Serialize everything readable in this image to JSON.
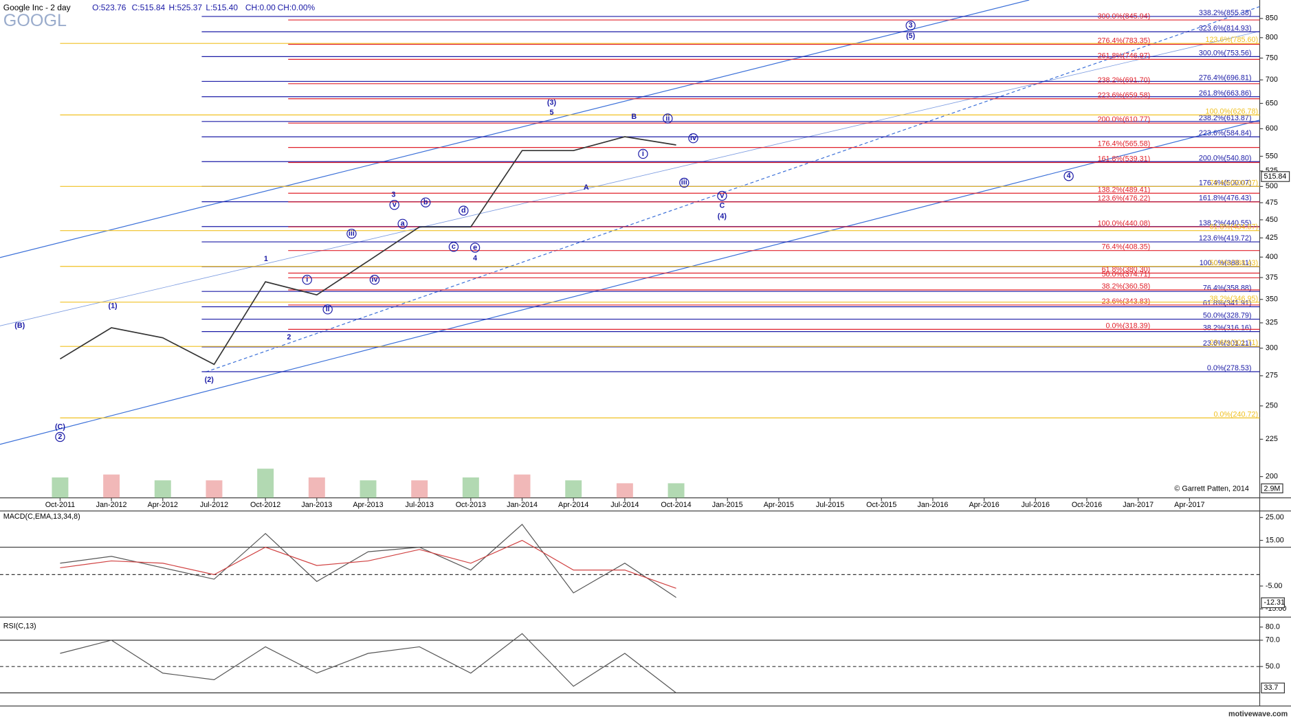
{
  "header": {
    "title": "Google Inc - 2 day",
    "open": "O:523.76",
    "close": "C:515.84",
    "high": "H:525.37",
    "low": "L:515.40",
    "change": "CH:0.00",
    "change_pct": "CH:0.00%",
    "symbol": "GOOGL"
  },
  "footer": "motivewave.com",
  "chart_data": [
    {
      "type": "line",
      "categories": [
        "Oct-2011",
        "Jan-2012",
        "Apr-2012",
        "Jul-2012",
        "Oct-2012",
        "Jan-2013",
        "Apr-2013",
        "Jul-2013",
        "Oct-2013",
        "Jan-2014",
        "Apr-2014",
        "Jul-2014",
        "Oct-2014",
        "Jan-2015",
        "Apr-2015",
        "Jul-2015",
        "Oct-2015",
        "Jan-2016",
        "Apr-2016",
        "Jul-2016",
        "Oct-2016",
        "Jan-2017",
        "Apr-2017"
      ],
      "series": [
        {
          "color": "#333333",
          "values": [
            290,
            320,
            310,
            285,
            370,
            355,
            395,
            440,
            440,
            560,
            560,
            585,
            570,
            null,
            null,
            null,
            null,
            null,
            null,
            null,
            null,
            null,
            null
          ]
        }
      ],
      "log_scale": true,
      "ylim": [
        187,
        901
      ],
      "yticks": [
        850,
        800,
        750,
        700,
        650,
        600,
        550,
        525,
        500,
        475,
        450,
        425,
        400,
        375,
        350,
        325,
        300,
        275,
        250,
        225,
        200
      ],
      "last_price": 515.84,
      "volume": {
        "values": [
          3.5,
          4,
          3,
          3,
          5,
          3.5,
          3,
          3,
          3.5,
          4,
          3,
          2.5,
          2.5,
          null,
          null,
          null,
          null,
          null,
          null,
          null,
          null,
          null,
          null
        ],
        "ylim": [
          0,
          12
        ],
        "last": {
          "value": 2.9,
          "label": "2.9M"
        }
      },
      "fib_levels": [
        {
          "color": "#1a1aa6",
          "lines": [
            {
              "value": 855.38,
              "label": "338.2%(855.38)"
            },
            {
              "value": 814.93,
              "label": "323.6%(814.93)"
            },
            {
              "value": 753.56,
              "label": "300.0%(753.56)"
            },
            {
              "value": 696.81,
              "label": "276.4%(696.81)"
            },
            {
              "value": 663.86,
              "label": "261.8%(663.86)"
            },
            {
              "value": 613.87,
              "label": "238.2%(613.87)"
            },
            {
              "value": 584.84,
              "label": "223.6%(584.84)"
            },
            {
              "value": 540.8,
              "label": "200.0%(540.80)"
            },
            {
              "value": 500.07,
              "label": "176.4%(500.07)"
            },
            {
              "value": 476.43,
              "label": "161.8%(476.43)"
            },
            {
              "value": 440.55,
              "label": "138.2%(440.55)"
            },
            {
              "value": 419.72,
              "label": "123.6%(419.72)"
            },
            {
              "value": 388.11,
              "label": "100.0%(388.11)"
            },
            {
              "value": 358.88,
              "label": "76.4%(358.88)"
            },
            {
              "value": 341.91,
              "label": "61.8%(341.91)"
            },
            {
              "value": 328.79,
              "label": "50.0%(328.79)"
            },
            {
              "value": 316.16,
              "label": "38.2%(316.16)"
            },
            {
              "value": 301.21,
              "label": "23.6%(301.21)"
            },
            {
              "value": 278.53,
              "label": "0.0%(278.53)"
            }
          ]
        },
        {
          "color": "#e0202a",
          "lines": [
            {
              "value": 845.94,
              "label": "300.0%(845.94)"
            },
            {
              "value": 783.35,
              "label": "276.4%(783.35)"
            },
            {
              "value": 746.97,
              "label": "261.8%(746.97)"
            },
            {
              "value": 691.7,
              "label": "238.2%(691.70)"
            },
            {
              "value": 659.58,
              "label": "223.6%(659.58)"
            },
            {
              "value": 610.77,
              "label": "200.0%(610.77)"
            },
            {
              "value": 565.58,
              "label": "176.4%(565.58)"
            },
            {
              "value": 539.31,
              "label": "161.8%(539.31)"
            },
            {
              "value": 489.41,
              "label": "138.2%(489.41)"
            },
            {
              "value": 476.22,
              "label": "123.6%(476.22)"
            },
            {
              "value": 440.08,
              "label": "100.0%(440.08)"
            },
            {
              "value": 408.35,
              "label": "76.4%(408.35)"
            },
            {
              "value": 380.3,
              "label": "61.8%(380.30)"
            },
            {
              "value": 374.71,
              "label": "50.0%(374.71)"
            },
            {
              "value": 360.58,
              "label": "38.2%(360.58)"
            },
            {
              "value": 343.83,
              "label": "23.6%(343.83)"
            },
            {
              "value": 318.39,
              "label": "0.0%(318.39)"
            }
          ]
        },
        {
          "color": "#f0c020",
          "lines": [
            {
              "value": 785.6,
              "label": "123.6%(785.60)"
            },
            {
              "value": 626.78,
              "label": "100.0%(626.78)"
            },
            {
              "value": 500.07,
              "label": "76.4%(500.07)"
            },
            {
              "value": 434.87,
              "label": "61.8%(434.87)"
            },
            {
              "value": 388.43,
              "label": "50.0%(388.43)"
            },
            {
              "value": 346.95,
              "label": "38.2%(346.95)"
            },
            {
              "value": 301.71,
              "label": "23.6%(301.71)"
            },
            {
              "value": 240.72,
              "label": "0.0%(240.72)"
            }
          ]
        }
      ],
      "waves": [
        {
          "label": "(B)",
          "circled": false
        },
        {
          "label": "(1)",
          "circled": false
        },
        {
          "label": "(C)",
          "circled": false
        },
        {
          "label": "2",
          "circled": true
        },
        {
          "label": "(2)",
          "circled": false
        },
        {
          "label": "1",
          "circled": false
        },
        {
          "label": "2",
          "circled": false
        },
        {
          "label": "i",
          "circled": true
        },
        {
          "label": "ii",
          "circled": true
        },
        {
          "label": "iii",
          "circled": true
        },
        {
          "label": "iv",
          "circled": true
        },
        {
          "label": "3",
          "circled": false
        },
        {
          "label": "v",
          "circled": true
        },
        {
          "label": "a",
          "circled": true
        },
        {
          "label": "b",
          "circled": true
        },
        {
          "label": "c",
          "circled": true
        },
        {
          "label": "d",
          "circled": true
        },
        {
          "label": "e",
          "circled": true
        },
        {
          "label": "4",
          "circled": false
        },
        {
          "label": "(3)",
          "circled": false
        },
        {
          "label": "5",
          "circled": false
        },
        {
          "label": "A",
          "circled": false
        },
        {
          "label": "B",
          "circled": false
        },
        {
          "label": "i",
          "circled": true
        },
        {
          "label": "ii",
          "circled": true
        },
        {
          "label": "iii",
          "circled": true
        },
        {
          "label": "iv",
          "circled": true
        },
        {
          "label": "v",
          "circled": true
        },
        {
          "label": "C",
          "circled": false
        },
        {
          "label": "(4)",
          "circled": false
        },
        {
          "label": "3",
          "circled": true
        },
        {
          "label": "(5)",
          "circled": false
        },
        {
          "label": "4",
          "circled": true
        }
      ],
      "copyright": "© Garrett Patten, 2014"
    },
    {
      "type": "line",
      "title": "MACD(C,EMA,13,34,8)",
      "series": [
        {
          "color": "#555555",
          "values": [
            5,
            8,
            3,
            -2,
            18,
            -3,
            10,
            12,
            2,
            22,
            -8,
            5,
            -10,
            null,
            null,
            null,
            null,
            null,
            null,
            null,
            null,
            null,
            null
          ]
        },
        {
          "color": "#d04040",
          "values": [
            3,
            6,
            5,
            0,
            12,
            4,
            6,
            11,
            5,
            15,
            2,
            2,
            -6,
            null,
            null,
            null,
            null,
            null,
            null,
            null,
            null,
            null,
            null
          ]
        }
      ],
      "ylim": [
        -17.9,
        27.5
      ],
      "yticks": [
        {
          "value": 25,
          "label": "25.00"
        },
        {
          "value": 15,
          "label": "15.00"
        },
        {
          "value": -5,
          "label": "-5.00"
        },
        {
          "value": -15,
          "label": "-15.00"
        }
      ],
      "levels": [
        0
      ],
      "last": -12.31
    },
    {
      "type": "line",
      "title": "RSI(C,13)",
      "series": [
        {
          "color": "#555555",
          "values": [
            60,
            70,
            45,
            40,
            65,
            45,
            60,
            65,
            45,
            75,
            35,
            60,
            30,
            null,
            null,
            null,
            null,
            null,
            null,
            null,
            null,
            null,
            null
          ]
        }
      ],
      "ylim": [
        20,
        84.4
      ],
      "yticks": [
        {
          "value": 80,
          "label": "80.0"
        },
        {
          "value": 70,
          "label": "70.0"
        },
        {
          "value": 50,
          "label": "50.0"
        }
      ],
      "levels": [
        70,
        30
      ],
      "midline": 50,
      "last": 33.7
    }
  ]
}
